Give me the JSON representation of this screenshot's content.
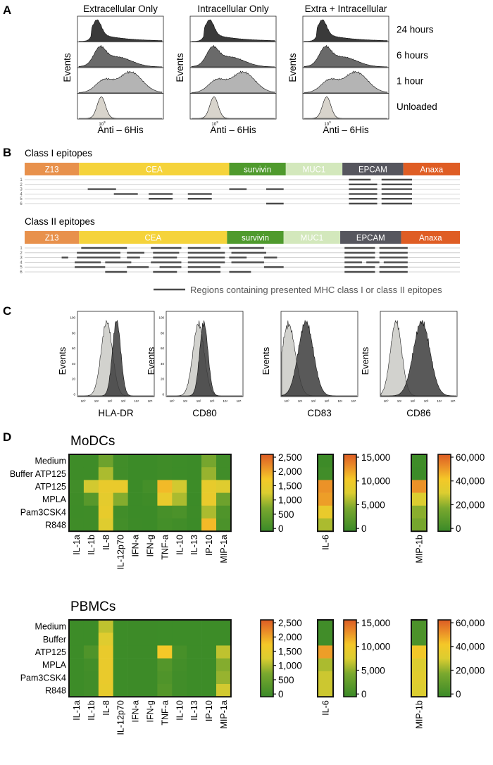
{
  "panels": {
    "a": {
      "letter": "A",
      "columns": [
        "Extracellular Only",
        "Intracellular Only",
        "Extra + Intracellular"
      ],
      "rows": [
        "24 hours",
        "6 hours",
        "1 hour",
        "Unloaded"
      ],
      "ylabel": "Events",
      "xlabel": "Anti – 6His",
      "tick": "10",
      "tick_exp": "3",
      "fill_colors": [
        "#3a3a3a",
        "#6a6a6a",
        "#b4b4b4",
        "#d8d4cc"
      ]
    },
    "b": {
      "letter": "B",
      "legend": "Regions containing presented MHC class I or class II epitopes",
      "maps": [
        {
          "title": "Class I epitopes",
          "rows": [
            "1",
            "2",
            "3",
            "4",
            "5",
            "6"
          ],
          "segments": [
            {
              "label": "Z13",
              "color": "#e8914c",
              "text_color": "#ffffff",
              "start": 0,
              "end": 12.5
            },
            {
              "label": "CEA",
              "color": "#f5d33b",
              "text_color": "#ffffff",
              "start": 12.5,
              "end": 47
            },
            {
              "label": "survivin",
              "color": "#4f9a2d",
              "text_color": "#ffffff",
              "start": 47,
              "end": 60
            },
            {
              "label": "MUC1",
              "color": "#d3e8bc",
              "text_color": "#ffffff",
              "start": 60,
              "end": 73
            },
            {
              "label": "EPCAM",
              "color": "#56565e",
              "text_color": "#ffffff",
              "start": 73,
              "end": 87
            },
            {
              "label": "Anaxa",
              "color": "#df5d24",
              "text_color": "#ffffff",
              "start": 87,
              "end": 100
            }
          ],
          "epitopes": [
            {
              "row": 1,
              "start": 74.5,
              "end": 79.5
            },
            {
              "row": 1,
              "start": 82,
              "end": 89
            },
            {
              "row": 2,
              "start": 74.5,
              "end": 81
            },
            {
              "row": 2,
              "start": 82,
              "end": 89
            },
            {
              "row": 3,
              "start": 14.5,
              "end": 21
            },
            {
              "row": 3,
              "start": 47,
              "end": 51
            },
            {
              "row": 3,
              "start": 55.5,
              "end": 59.5
            },
            {
              "row": 3,
              "start": 74.5,
              "end": 81
            },
            {
              "row": 3,
              "start": 82,
              "end": 89
            },
            {
              "row": 4,
              "start": 20.5,
              "end": 26
            },
            {
              "row": 4,
              "start": 28.5,
              "end": 34
            },
            {
              "row": 4,
              "start": 37.5,
              "end": 43
            },
            {
              "row": 4,
              "start": 74.5,
              "end": 81
            },
            {
              "row": 4,
              "start": 82,
              "end": 89
            },
            {
              "row": 5,
              "start": 28.5,
              "end": 34
            },
            {
              "row": 5,
              "start": 37.5,
              "end": 43
            },
            {
              "row": 5,
              "start": 74.5,
              "end": 81
            },
            {
              "row": 5,
              "start": 82,
              "end": 89
            },
            {
              "row": 6,
              "start": 55.5,
              "end": 59.5
            },
            {
              "row": 6,
              "start": 74.5,
              "end": 81
            },
            {
              "row": 6,
              "start": 82,
              "end": 89
            }
          ]
        },
        {
          "title": "Class II epitopes",
          "rows": [
            "1",
            "2",
            "3",
            "4",
            "5",
            "6"
          ],
          "segments": [
            {
              "label": "Z13",
              "color": "#e8914c",
              "text_color": "#ffffff",
              "start": 0,
              "end": 12.5
            },
            {
              "label": "CEA",
              "color": "#f5d33b",
              "text_color": "#ffffff",
              "start": 12.5,
              "end": 46.5
            },
            {
              "label": "survivin",
              "color": "#4f9a2d",
              "text_color": "#ffffff",
              "start": 46.5,
              "end": 59.5
            },
            {
              "label": "MUC1",
              "color": "#d3e8bc",
              "text_color": "#ffffff",
              "start": 59.5,
              "end": 72.5
            },
            {
              "label": "EPCAM",
              "color": "#56565e",
              "text_color": "#ffffff",
              "start": 72.5,
              "end": 86.5
            },
            {
              "label": "Anaxa",
              "color": "#df5d24",
              "text_color": "#ffffff",
              "start": 86.5,
              "end": 100
            }
          ],
          "epitopes": [
            {
              "row": 1,
              "start": 13,
              "end": 23.5
            },
            {
              "row": 1,
              "start": 29,
              "end": 36
            },
            {
              "row": 1,
              "start": 37.5,
              "end": 45
            },
            {
              "row": 1,
              "start": 47,
              "end": 55
            },
            {
              "row": 1,
              "start": 73.5,
              "end": 80.5
            },
            {
              "row": 1,
              "start": 81.5,
              "end": 88
            },
            {
              "row": 2,
              "start": 12,
              "end": 22
            },
            {
              "row": 2,
              "start": 23.5,
              "end": 27.5
            },
            {
              "row": 2,
              "start": 29.5,
              "end": 35.5
            },
            {
              "row": 2,
              "start": 37.5,
              "end": 46
            },
            {
              "row": 2,
              "start": 47.5,
              "end": 55.5
            },
            {
              "row": 2,
              "start": 73.5,
              "end": 80.5
            },
            {
              "row": 2,
              "start": 81.5,
              "end": 88
            },
            {
              "row": 3,
              "start": 8.5,
              "end": 10
            },
            {
              "row": 3,
              "start": 12,
              "end": 22
            },
            {
              "row": 3,
              "start": 23.5,
              "end": 26.5
            },
            {
              "row": 3,
              "start": 29.5,
              "end": 35
            },
            {
              "row": 3,
              "start": 37.5,
              "end": 46
            },
            {
              "row": 3,
              "start": 47,
              "end": 51
            },
            {
              "row": 3,
              "start": 55,
              "end": 58
            },
            {
              "row": 3,
              "start": 73.5,
              "end": 80.5
            },
            {
              "row": 3,
              "start": 81.5,
              "end": 88
            },
            {
              "row": 4,
              "start": 11.5,
              "end": 17.5
            },
            {
              "row": 4,
              "start": 18.5,
              "end": 24.5
            },
            {
              "row": 4,
              "start": 29,
              "end": 36
            },
            {
              "row": 4,
              "start": 37.5,
              "end": 46
            },
            {
              "row": 4,
              "start": 47.5,
              "end": 55
            },
            {
              "row": 4,
              "start": 73.5,
              "end": 77.5
            },
            {
              "row": 4,
              "start": 78.5,
              "end": 81.5
            },
            {
              "row": 4,
              "start": 82.5,
              "end": 88
            },
            {
              "row": 5,
              "start": 11.5,
              "end": 18.5
            },
            {
              "row": 5,
              "start": 23.5,
              "end": 28.5
            },
            {
              "row": 5,
              "start": 31,
              "end": 36
            },
            {
              "row": 5,
              "start": 37.5,
              "end": 45
            },
            {
              "row": 5,
              "start": 55,
              "end": 59.5
            },
            {
              "row": 5,
              "start": 73.5,
              "end": 80.5
            },
            {
              "row": 5,
              "start": 81.5,
              "end": 88
            },
            {
              "row": 6,
              "start": 18.5,
              "end": 23.5
            },
            {
              "row": 6,
              "start": 29.5,
              "end": 35
            },
            {
              "row": 6,
              "start": 37.5,
              "end": 45
            },
            {
              "row": 6,
              "start": 47,
              "end": 52
            },
            {
              "row": 6,
              "start": 73.5,
              "end": 80.5
            },
            {
              "row": 6,
              "start": 81.5,
              "end": 88
            }
          ]
        }
      ]
    },
    "c": {
      "letter": "C",
      "ylabel": "Events",
      "ytick_labels": [
        "0",
        "20",
        "40",
        "60",
        "80",
        "100"
      ],
      "markers": [
        "HLA-DR",
        "CD80",
        "CD83",
        "CD86"
      ],
      "control_color": "#d2d2ce",
      "stained_color": "#3c3c3c"
    },
    "d": {
      "letter": "D"
    }
  },
  "chart_data": [
    {
      "type": "area",
      "title": "Extracellular Only",
      "xlabel": "Anti – 6His",
      "ylabel": "Events",
      "x_scale": "log",
      "series": [
        {
          "name": "24 hours",
          "peak_log10": 2.1,
          "shape": "sharp peak with long right tail"
        },
        {
          "name": "6 hours",
          "peak_log10": 2.2,
          "shape": "broad"
        },
        {
          "name": "1 hour",
          "peak_log10": 3.0,
          "shape": "broad right-shifted"
        },
        {
          "name": "Unloaded",
          "peak_log10": 2.0,
          "shape": "narrow"
        }
      ]
    },
    {
      "type": "area",
      "title": "Intracellular Only",
      "xlabel": "Anti – 6His",
      "ylabel": "Events",
      "x_scale": "log",
      "series": [
        {
          "name": "24 hours",
          "peak_log10": 2.1,
          "shape": "sharp peak with long right tail"
        },
        {
          "name": "6 hours",
          "peak_log10": 2.2,
          "shape": "broad"
        },
        {
          "name": "1 hour",
          "peak_log10": 3.0,
          "shape": "broad right-shifted"
        },
        {
          "name": "Unloaded",
          "peak_log10": 2.0,
          "shape": "narrow"
        }
      ]
    },
    {
      "type": "area",
      "title": "Extra + Intracellular",
      "xlabel": "Anti – 6His",
      "ylabel": "Events",
      "x_scale": "log",
      "series": [
        {
          "name": "24 hours",
          "peak_log10": 2.1,
          "shape": "sharp peak with long right tail"
        },
        {
          "name": "6 hours",
          "peak_log10": 2.2,
          "shape": "broad"
        },
        {
          "name": "1 hour",
          "peak_log10": 3.0,
          "shape": "broad right-shifted"
        },
        {
          "name": "Unloaded",
          "peak_log10": 2.0,
          "shape": "narrow"
        }
      ]
    },
    {
      "type": "area",
      "xlabel": "HLA-DR",
      "ylabel": "Events",
      "x_scale": "log",
      "xlim_log10": [
        0,
        5
      ],
      "ylim": [
        0,
        100
      ],
      "xtick_labels": [
        "10⁰",
        "10¹",
        "10²",
        "10³",
        "10⁴",
        "10⁵"
      ],
      "yticks": [
        0,
        20,
        40,
        60,
        80,
        100
      ],
      "control_peak_log10": 1.9,
      "stained_peak_log10": 2.55
    },
    {
      "type": "area",
      "xlabel": "CD80",
      "ylabel": "Events",
      "x_scale": "log",
      "xlim_log10": [
        0,
        5
      ],
      "ylim": [
        0,
        100
      ],
      "xtick_labels": [
        "10⁰",
        "10¹",
        "10²",
        "10³",
        "10⁴",
        "10⁵"
      ],
      "yticks": [
        0,
        20,
        40,
        60,
        80,
        100
      ],
      "control_peak_log10": 2.1,
      "stained_peak_log10": 2.45
    },
    {
      "type": "area",
      "xlabel": "CD83",
      "ylabel": "Events",
      "x_scale": "log",
      "xlim_log10": [
        0,
        5
      ],
      "ylim": [
        0,
        100
      ],
      "xtick_labels": [
        "10⁰",
        "10¹",
        "10²",
        "10³",
        "10⁴",
        "10⁵"
      ],
      "yticks": [
        0,
        20,
        40,
        60,
        80,
        100
      ],
      "control_peak_log10": 0.45,
      "stained_peak_log10": 1.6
    },
    {
      "type": "area",
      "xlabel": "CD86",
      "ylabel": "Events",
      "x_scale": "log",
      "xlim_log10": [
        0,
        5
      ],
      "ylim": [
        0,
        100
      ],
      "xtick_labels": [
        "10⁰",
        "10¹",
        "10²",
        "10³",
        "10⁴",
        "10⁵"
      ],
      "yticks": [
        0,
        20,
        40,
        60,
        80,
        100
      ],
      "control_peak_log10": 1.0,
      "stained_peak_log10": 2.7
    },
    {
      "type": "heatmap",
      "title": "MoDCs",
      "rows": [
        "Medium",
        "Buffer ATP125",
        "ATP125",
        "MPLA",
        "Pam3CSK4",
        "R848"
      ],
      "columns": [
        "IL-1a",
        "IL-1b",
        "IL-8",
        "IL-12p70",
        "IFN-a",
        "IFN-g",
        "TNF-a",
        "IL-10",
        "IL-13",
        "IP-10",
        "MIP-1a"
      ],
      "scale": {
        "min": 0,
        "max": 2500,
        "ticks": [
          "2,500",
          "2,000",
          "1,500",
          "1,000",
          "500",
          "0"
        ]
      },
      "values": [
        [
          50,
          50,
          600,
          80,
          20,
          20,
          60,
          40,
          20,
          700,
          80
        ],
        [
          50,
          50,
          1000,
          80,
          20,
          20,
          60,
          40,
          20,
          900,
          80
        ],
        [
          80,
          1200,
          1500,
          1500,
          20,
          120,
          1800,
          1200,
          40,
          1450,
          1300
        ],
        [
          60,
          350,
          1400,
          800,
          20,
          60,
          1500,
          1000,
          20,
          1500,
          600
        ],
        [
          50,
          60,
          1450,
          80,
          20,
          20,
          150,
          200,
          30,
          1000,
          250
        ],
        [
          60,
          60,
          1300,
          100,
          30,
          20,
          120,
          80,
          20,
          1800,
          200
        ]
      ],
      "extra_heatmaps": [
        {
          "name": "IL-6",
          "scale": {
            "min": 0,
            "max": 15000,
            "ticks": [
              "15,000",
              "10,000",
              "5,000",
              "0"
            ]
          },
          "values": [
            200,
            500,
            12500,
            12000,
            9000,
            6000
          ]
        },
        {
          "name": "MIP-1b",
          "scale": {
            "min": 0,
            "max": 60000,
            "ticks": [
              "60,000",
              "40,000",
              "20,000",
              "0"
            ]
          },
          "values": [
            1000,
            500,
            50000,
            30000,
            20000,
            17000
          ]
        }
      ]
    },
    {
      "type": "heatmap",
      "title": "PBMCs",
      "rows": [
        "Medium",
        "Buffer",
        "ATP125",
        "MPLA",
        "Pam3CSK4",
        "R848"
      ],
      "columns": [
        "IL-1a",
        "IL-1b",
        "IL-8",
        "IL-12p70",
        "IFN-a",
        "IFN-g",
        "TNF-a",
        "IL-10",
        "IL-13",
        "IP-10",
        "MIP-1a"
      ],
      "scale": {
        "min": 0,
        "max": 2500,
        "ticks": [
          "2,500",
          "2,000",
          "1,500",
          "1,000",
          "500",
          "0"
        ]
      },
      "values": [
        [
          40,
          40,
          1100,
          40,
          30,
          30,
          40,
          40,
          40,
          40,
          40
        ],
        [
          40,
          40,
          1300,
          40,
          30,
          30,
          40,
          40,
          40,
          40,
          40
        ],
        [
          40,
          250,
          1500,
          40,
          30,
          30,
          1700,
          150,
          40,
          40,
          1100
        ],
        [
          40,
          100,
          1500,
          40,
          30,
          30,
          300,
          100,
          40,
          40,
          800
        ],
        [
          40,
          80,
          1500,
          40,
          30,
          30,
          250,
          80,
          40,
          40,
          900
        ],
        [
          40,
          80,
          1450,
          40,
          30,
          30,
          300,
          80,
          40,
          40,
          1200
        ]
      ],
      "extra_heatmaps": [
        {
          "name": "IL-6",
          "scale": {
            "min": 0,
            "max": 15000,
            "ticks": [
              "15,000",
              "10,000",
              "5,000",
              "0"
            ]
          },
          "values": [
            500,
            500,
            12000,
            6000,
            7000,
            7000
          ]
        },
        {
          "name": "MIP-1b",
          "scale": {
            "min": 0,
            "max": 60000,
            "ticks": [
              "60,000",
              "40,000",
              "20,000",
              "0"
            ]
          },
          "values": [
            5000,
            5000,
            40000,
            30000,
            32000,
            30000
          ]
        }
      ]
    }
  ]
}
